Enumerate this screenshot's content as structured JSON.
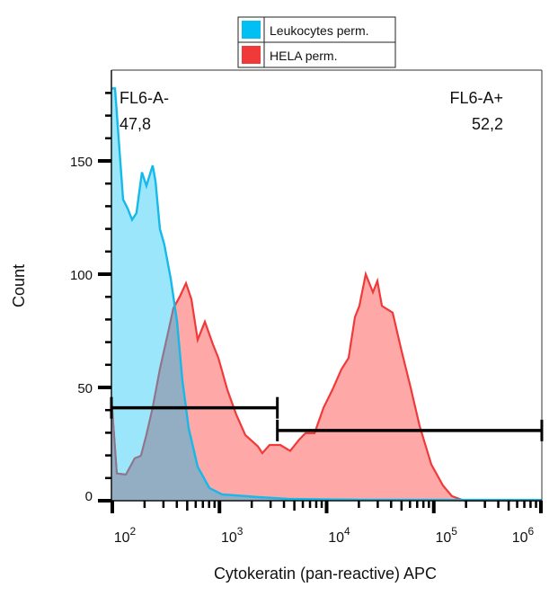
{
  "chart_data": {
    "type": "area",
    "xlabel": "Cytokeratin (pan-reactive) APC",
    "ylabel": "Count",
    "x_scale": "log",
    "xlim": [
      98,
      1020000
    ],
    "ylim": [
      0,
      190
    ],
    "x_ticks": [
      {
        "base": "10",
        "exp": "2",
        "value": 100
      },
      {
        "base": "10",
        "exp": "3",
        "value": 1000
      },
      {
        "base": "10",
        "exp": "4",
        "value": 10000
      },
      {
        "base": "10",
        "exp": "5",
        "value": 100000
      },
      {
        "base": "10",
        "exp": "6",
        "value": 1000000
      }
    ],
    "y_ticks": [
      {
        "label": "0",
        "value": 0
      },
      {
        "label": "50",
        "value": 50
      },
      {
        "label": "100",
        "value": 100
      },
      {
        "label": "150",
        "value": 150
      }
    ],
    "legend": {
      "placement": "top-center",
      "entries": [
        {
          "name": "Leukocytes perm.",
          "color": "#00bff3"
        },
        {
          "name": "HELA perm.",
          "color": "#f03a3a"
        }
      ]
    },
    "series": [
      {
        "name": "Leukocytes perm.",
        "line_color": "#15b9ea",
        "fill_color": "#9be6fb",
        "x": [
          98,
          106,
          117,
          126,
          139,
          153,
          168,
          189,
          208,
          238,
          253,
          278,
          306,
          351,
          402,
          451,
          516,
          626,
          805,
          1055,
          2280,
          4315,
          20200,
          1019000
        ],
        "y": [
          182,
          182,
          154,
          133,
          129,
          124,
          127,
          145,
          139,
          148,
          141,
          120,
          113,
          98,
          79,
          53,
          32,
          15,
          5.6,
          2.8,
          1.6,
          0.8,
          0.4,
          0.3
        ]
      },
      {
        "name": "HELA perm.",
        "line_color": "#f03a3a",
        "fill_color": "#ffa8a8",
        "x": [
          98,
          110,
          134,
          162,
          185,
          208,
          238,
          278,
          331,
          372,
          425,
          487,
          547,
          626,
          731,
          869,
          977,
          1184,
          1435,
          1742,
          2281,
          2512,
          2935,
          3700,
          4570,
          5550,
          6350,
          7710,
          9350,
          11330,
          13740,
          16030,
          18360,
          20210,
          23170,
          27040,
          29770,
          32820,
          41330,
          50120,
          60810,
          73770,
          94850,
          121900,
          147800,
          193800,
          1019000
        ],
        "y": [
          45,
          12,
          11.5,
          18.7,
          19.8,
          29,
          41,
          58,
          74,
          85,
          90,
          96,
          89,
          71,
          79,
          69,
          63,
          49,
          38,
          29,
          24,
          21,
          24.6,
          24.6,
          22,
          27,
          29.8,
          29.8,
          41,
          49,
          58,
          63,
          81,
          86,
          100,
          92,
          97,
          86,
          83,
          66,
          50,
          33,
          16,
          6.7,
          2,
          0,
          0
        ]
      }
    ],
    "overlap_color": "#93adc3",
    "gates": [
      {
        "name": "FL6-A-",
        "label": "FL6-A-",
        "percent": "47,8",
        "range": [
          98,
          3470
        ],
        "level": 41
      },
      {
        "name": "FL6-A+",
        "label": "FL6-A+",
        "percent": "52,2",
        "range": [
          3470,
          1019000
        ],
        "level": 31
      }
    ]
  }
}
